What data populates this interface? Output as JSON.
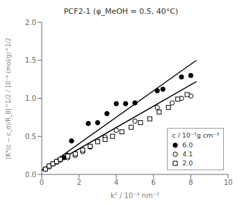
{
  "chart_data": {
    "type": "scatter",
    "title": "PCF2-1 (φ_MeOH = 0.5, 40°C)",
    "x_label": "k² / 10⁻⁴ nm⁻²",
    "y_label": "[K*(c − c_d)/R_θ]^1/2 / 10⁻⁴ (mol/g)^1/2",
    "xlim": [
      0,
      10
    ],
    "ylim": [
      0,
      2
    ],
    "xticks": [
      0,
      2,
      4,
      6,
      8,
      10
    ],
    "yticks": [
      {
        "value": 0,
        "label": "0.0"
      },
      0.5,
      {
        "value": 1,
        "label": "1.0"
      },
      1.5,
      {
        "value": 2,
        "label": "2.0"
      }
    ],
    "grid": false,
    "legend": "lower right",
    "legend_title": "c / 10⁻⁷g cm⁻³",
    "series": [
      {
        "type": "line",
        "color": "#000000",
        "x": [
          0.0,
          8.3
        ],
        "y": [
          0.055,
          1.5
        ]
      },
      {
        "type": "line",
        "color": "#000000",
        "x": [
          0.0,
          8.3
        ],
        "y": [
          0.055,
          1.22
        ]
      },
      {
        "type": "scatter",
        "name": "6.0",
        "marker": "filled_circle",
        "color": "#000000",
        "x": [
          0.2,
          0.4,
          0.6,
          0.8,
          1.0,
          1.2,
          1.4,
          1.6,
          2.5,
          3.0,
          3.5,
          4.0,
          4.5,
          5.0,
          6.2,
          6.5,
          7.5,
          8.0
        ],
        "y": [
          0.07,
          0.11,
          0.14,
          0.17,
          0.19,
          0.22,
          0.25,
          0.44,
          0.67,
          0.68,
          0.8,
          0.93,
          0.93,
          0.94,
          1.1,
          1.12,
          1.28,
          1.3
        ]
      },
      {
        "type": "scatter",
        "name": "4.1",
        "marker": "open_circle",
        "color": "#000000",
        "x": [
          0.2,
          0.4,
          0.6,
          0.8,
          1.0,
          1.4,
          1.8,
          2.2,
          2.6,
          3.0,
          3.4,
          4.0,
          5.0,
          6.2,
          7.0,
          7.5,
          8.0
        ],
        "y": [
          0.07,
          0.1,
          0.14,
          0.16,
          0.19,
          0.22,
          0.25,
          0.3,
          0.36,
          0.44,
          0.49,
          0.58,
          0.7,
          0.88,
          0.94,
          1.0,
          1.03
        ]
      },
      {
        "type": "scatter",
        "name": "2.0",
        "marker": "open_square",
        "color": "#000000",
        "x": [
          0.2,
          0.4,
          0.6,
          0.8,
          1.0,
          1.4,
          1.8,
          2.2,
          2.6,
          3.0,
          3.4,
          3.8,
          4.3,
          4.8,
          5.3,
          5.8,
          6.3,
          6.8,
          7.3,
          7.8
        ],
        "y": [
          0.07,
          0.11,
          0.14,
          0.17,
          0.2,
          0.24,
          0.27,
          0.32,
          0.37,
          0.43,
          0.46,
          0.5,
          0.56,
          0.62,
          0.68,
          0.73,
          0.82,
          0.88,
          0.99,
          1.05
        ]
      }
    ]
  }
}
